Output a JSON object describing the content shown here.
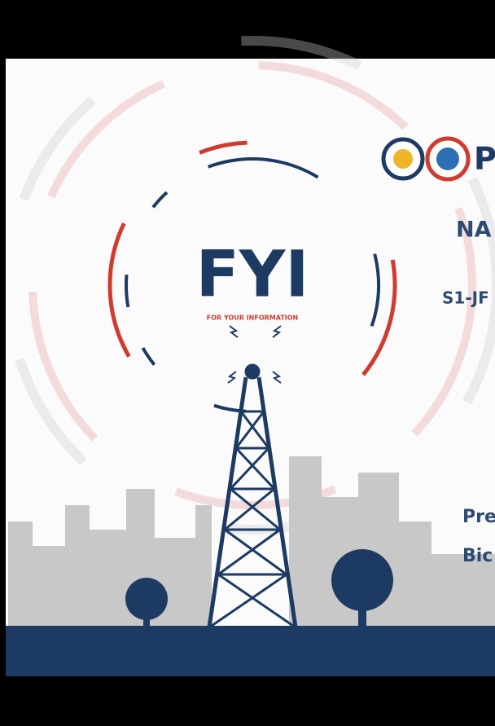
{
  "logo": {
    "title": "FYI",
    "subtitle": "FOR YOUR INFORMATION"
  },
  "right_text": {
    "line1": "P",
    "line2": "NA",
    "line3": "S1-JF",
    "line4": "Pre",
    "line5": "Bic"
  }
}
